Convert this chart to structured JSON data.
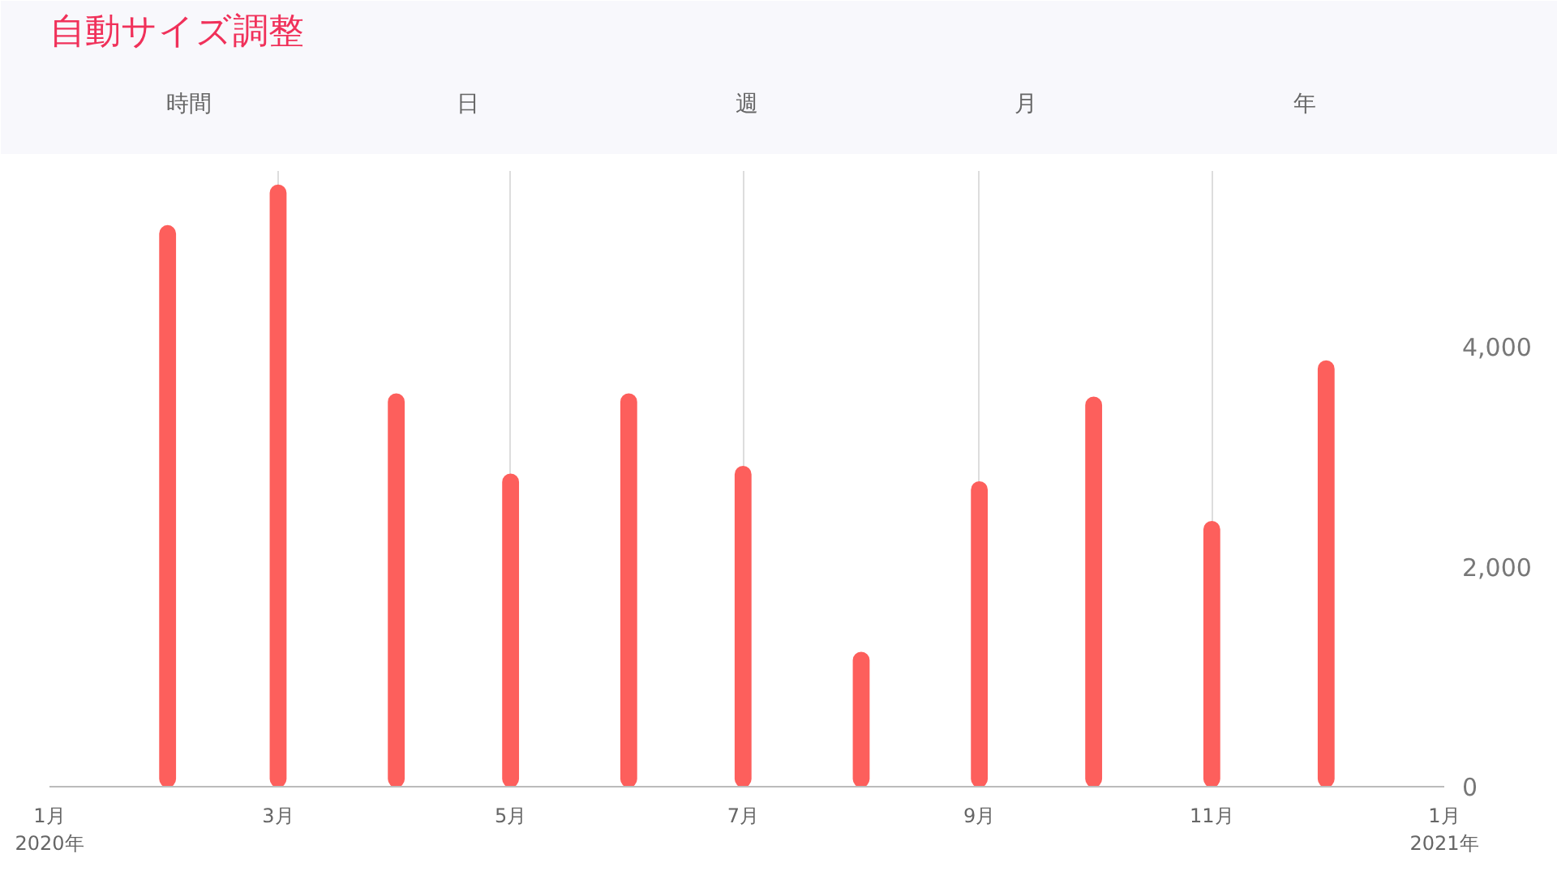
{
  "chart_data": {
    "type": "bar",
    "title": "自動サイズ調整",
    "annotations": [
      "時間",
      "日",
      "週",
      "月",
      "年"
    ],
    "x": [
      "2020-02",
      "2020-03",
      "2020-04",
      "2020-05",
      "2020-06",
      "2020-07",
      "2020-08",
      "2020-09",
      "2020-10",
      "2020-11",
      "2020-12"
    ],
    "series": [
      {
        "color": "#fd5f5c",
        "values": [
          5100,
          5470,
          3570,
          2840,
          3570,
          2910,
          1220,
          2770,
          3540,
          2410,
          3870
        ]
      }
    ],
    "xlim": [
      "2020-01-01",
      "2021-01-01"
    ],
    "xticks": [
      {
        "value": "2020-01-01",
        "label": "1月\n2020年"
      },
      {
        "value": "2020-03-01",
        "label": "3月"
      },
      {
        "value": "2020-05-01",
        "label": "5月"
      },
      {
        "value": "2020-07-01",
        "label": "7月"
      },
      {
        "value": "2020-09-01",
        "label": "9月"
      },
      {
        "value": "2020-11-01",
        "label": "11月"
      },
      {
        "value": "2021-01-01",
        "label": "1月\n2021年"
      }
    ],
    "ylim": [
      0,
      5600
    ],
    "yticks": [
      {
        "value": 0,
        "label": "0"
      },
      {
        "value": 2000,
        "label": "2,000"
      },
      {
        "value": 4000,
        "label": "4,000"
      }
    ],
    "grid": "x"
  }
}
